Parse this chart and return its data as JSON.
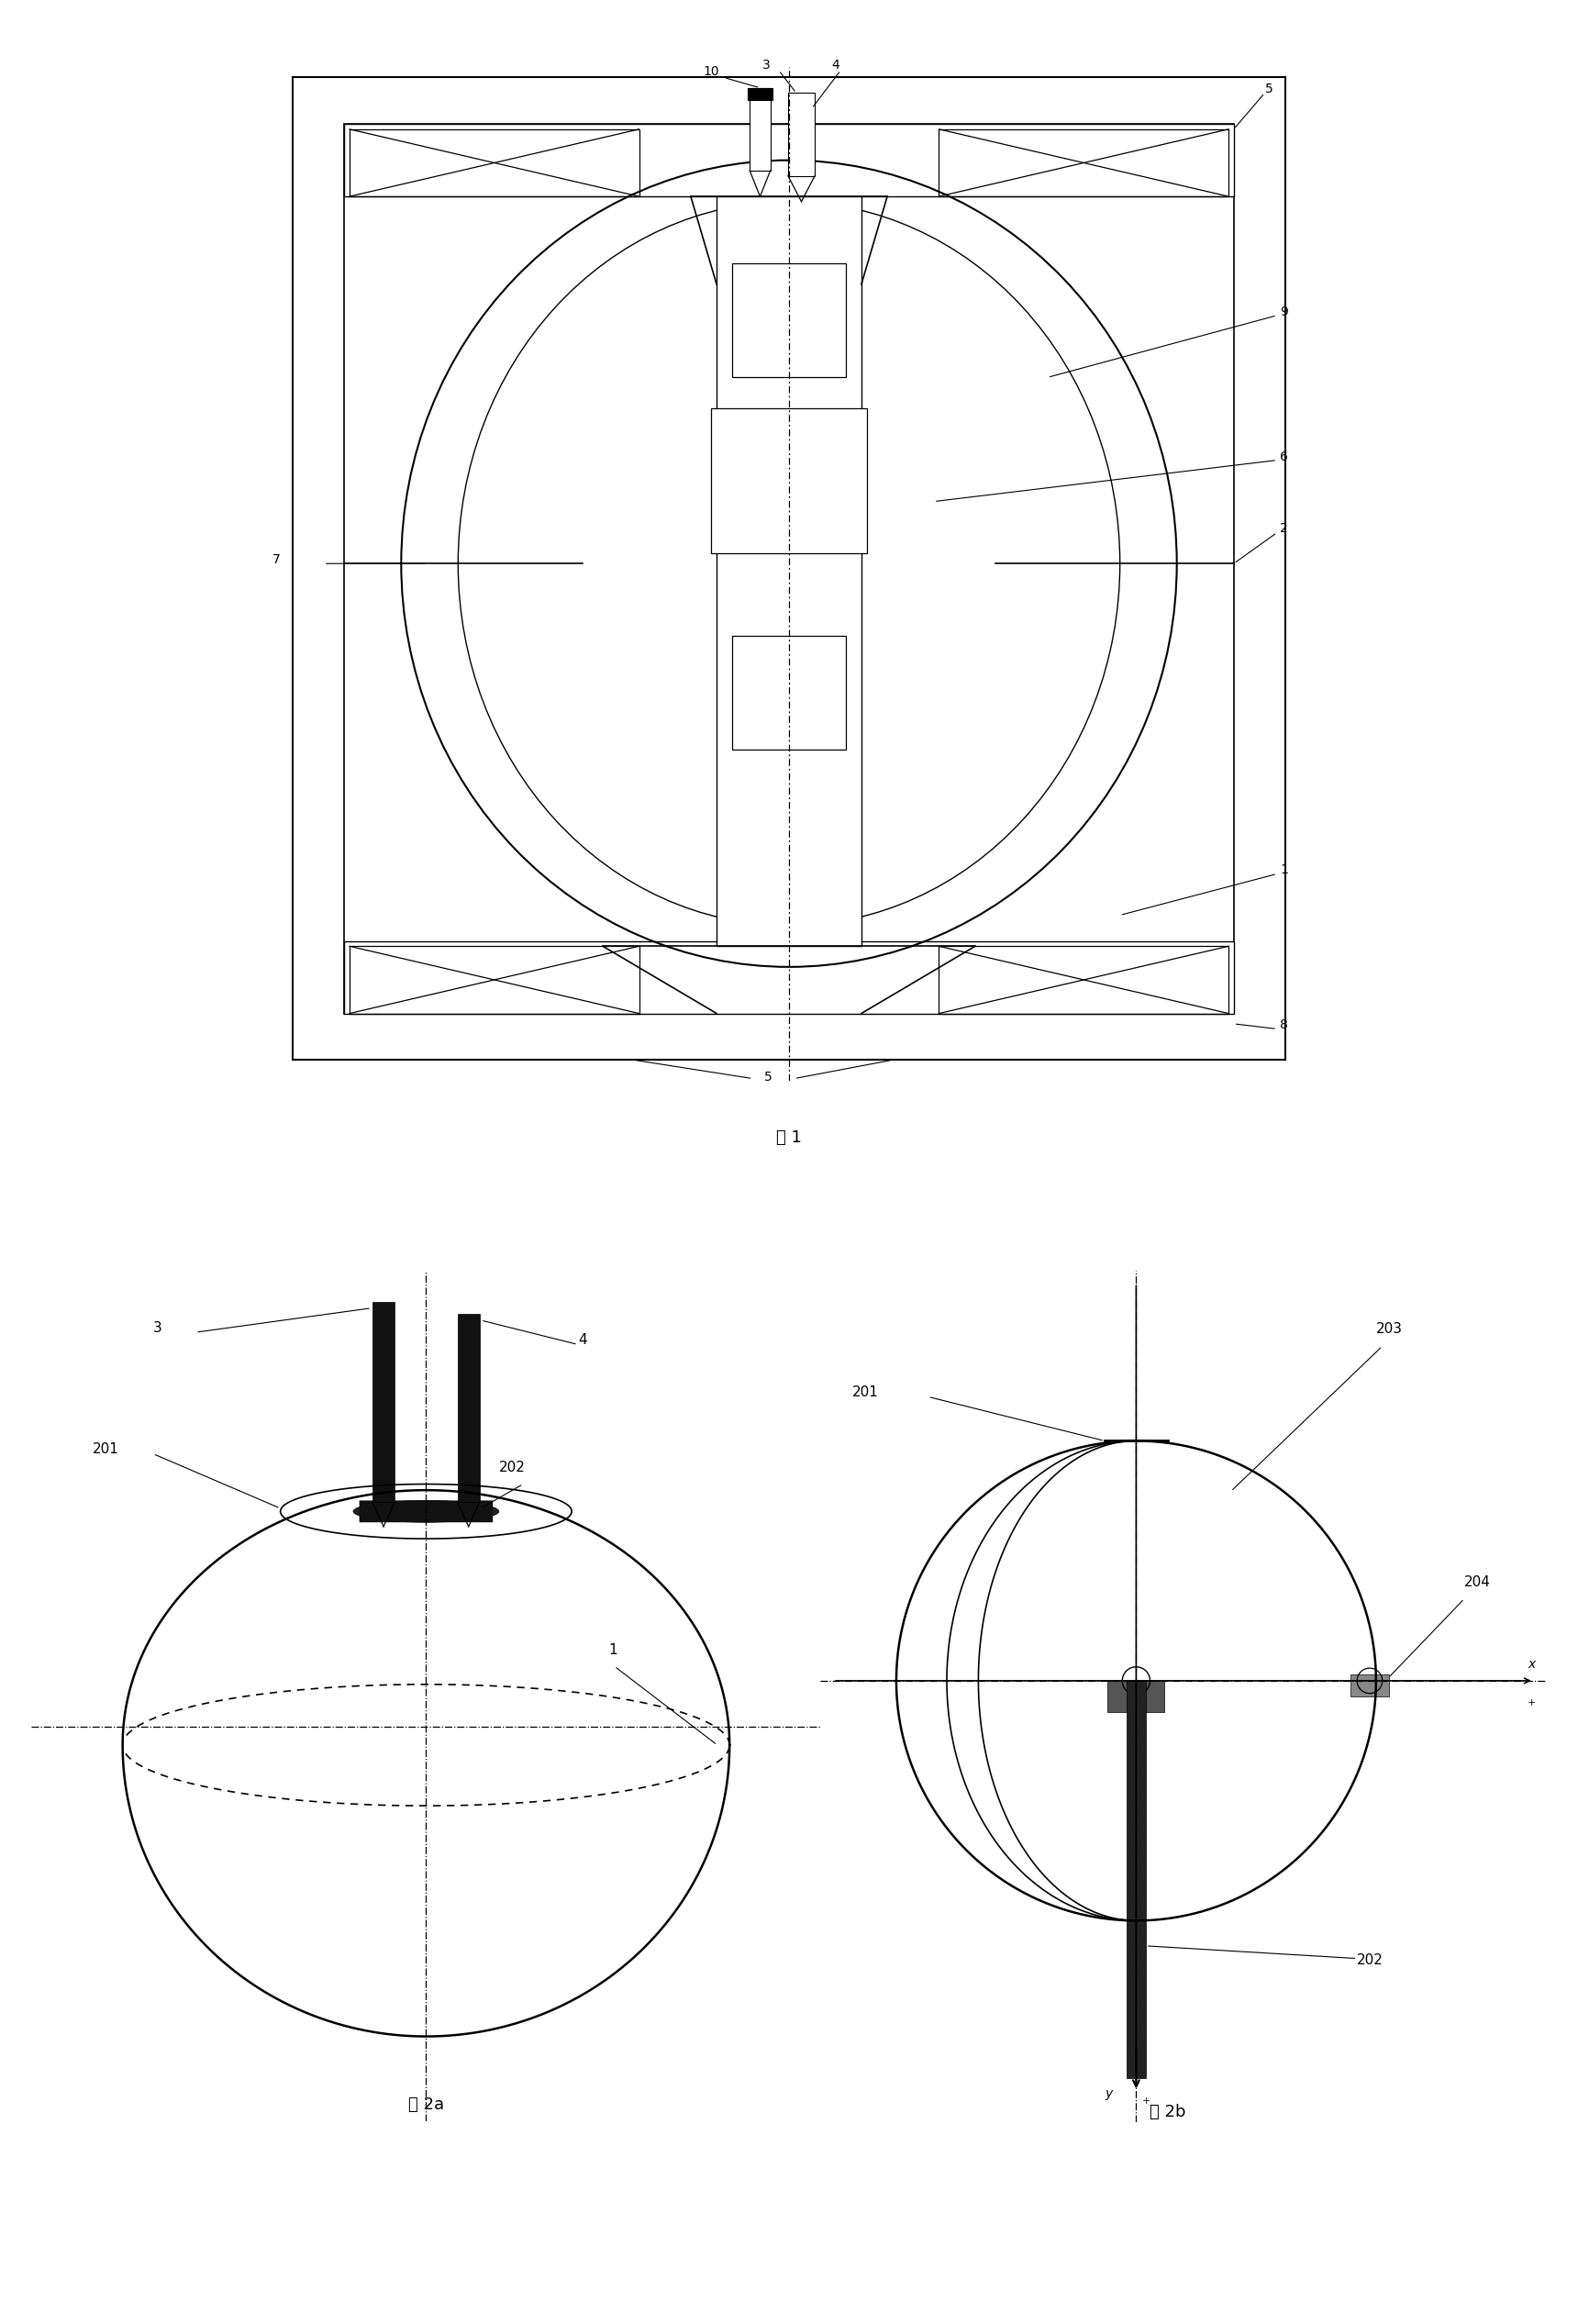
{
  "fig_caption1": "图 1",
  "fig_caption2a": "图 2a",
  "fig_caption2b": "图 2b",
  "line_color": "#000000",
  "bg_color": "#ffffff"
}
